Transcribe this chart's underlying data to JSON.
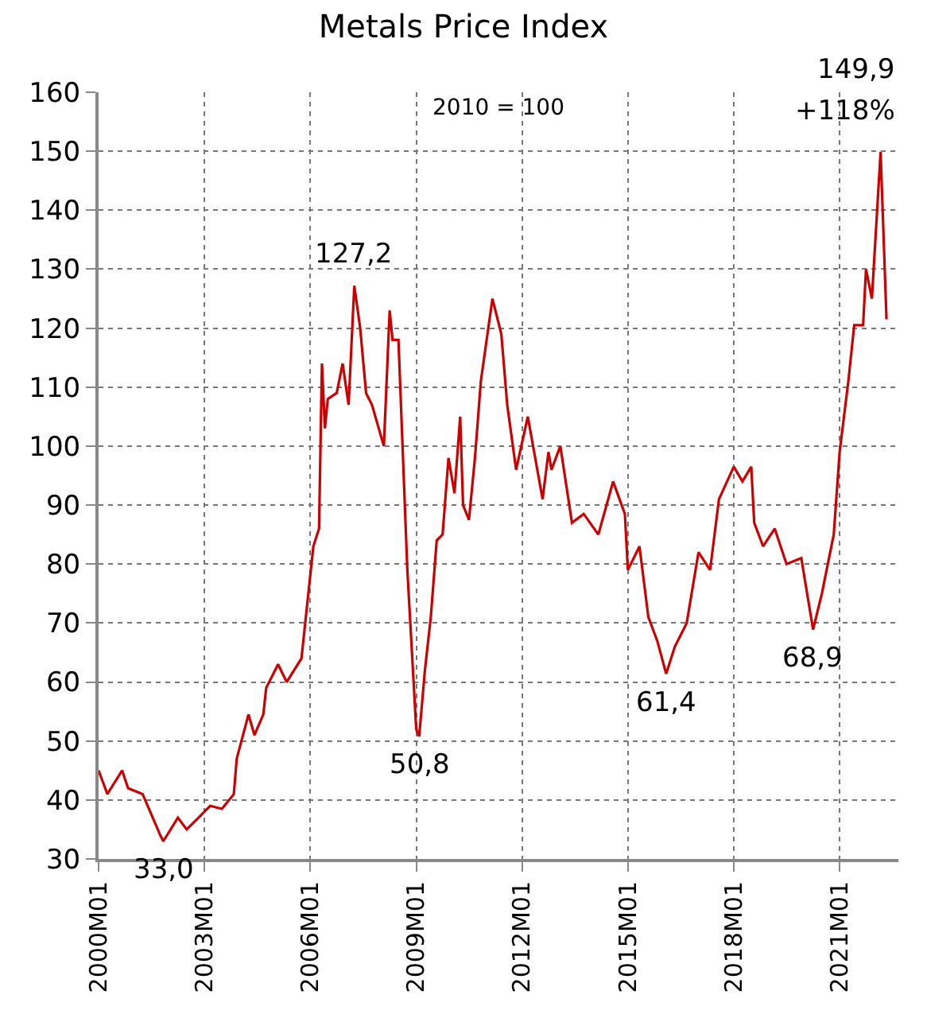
{
  "chart_data": {
    "type": "line",
    "title": "Metals Price Index",
    "subtitle": "2010 = 100",
    "x": [
      "2000-01",
      "2000-04",
      "2000-09",
      "2000-11",
      "2001-04",
      "2001-10",
      "2001-11",
      "2002-04",
      "2002-07",
      "2002-11",
      "2003-03",
      "2003-07",
      "2003-11",
      "2003-12",
      "2004-04",
      "2004-06",
      "2004-09",
      "2004-10",
      "2005-02",
      "2005-05",
      "2005-10",
      "2006-02",
      "2006-04",
      "2006-05",
      "2006-06",
      "2006-07",
      "2006-10",
      "2006-12",
      "2007-02",
      "2007-04",
      "2007-06",
      "2007-08",
      "2007-10",
      "2008-02",
      "2008-04",
      "2008-05",
      "2008-07",
      "2008-10",
      "2009-01",
      "2009-02",
      "2009-04",
      "2009-06",
      "2009-08",
      "2009-10",
      "2009-12",
      "2010-02",
      "2010-04",
      "2010-05",
      "2010-07",
      "2010-09",
      "2010-11",
      "2011-03",
      "2011-06",
      "2011-08",
      "2011-11",
      "2012-03",
      "2012-08",
      "2012-10",
      "2012-11",
      "2013-02",
      "2013-06",
      "2013-10",
      "2014-03",
      "2014-08",
      "2014-12",
      "2015-01",
      "2015-05",
      "2015-08",
      "2015-11",
      "2016-02",
      "2016-05",
      "2016-09",
      "2017-01",
      "2017-05",
      "2017-08",
      "2018-01",
      "2018-04",
      "2018-07",
      "2018-08",
      "2018-11",
      "2019-03",
      "2019-07",
      "2019-12",
      "2020-04",
      "2020-07",
      "2020-11",
      "2021-01",
      "2021-04",
      "2021-06",
      "2021-09",
      "2021-10",
      "2021-12",
      "2022-03",
      "2022-05"
    ],
    "series": [
      {
        "color": "#cc0000",
        "values": [
          45,
          41,
          45,
          42,
          41,
          34,
          33.0,
          37,
          35,
          37,
          39,
          38.5,
          41,
          47,
          54.5,
          51,
          54.5,
          59,
          63,
          60,
          64,
          83,
          86,
          114,
          103,
          108,
          109,
          114,
          107,
          127.2,
          120,
          109,
          107,
          100,
          123,
          118,
          118,
          79,
          52,
          50.8,
          62,
          71,
          84,
          85,
          98,
          92,
          105,
          90,
          87.5,
          98,
          111,
          125,
          119,
          107,
          96,
          105,
          91,
          99,
          96,
          100,
          87,
          88.5,
          85,
          94,
          88.5,
          79,
          83,
          71,
          67,
          61.4,
          66,
          70,
          82,
          79,
          91,
          96.5,
          94,
          96.5,
          87,
          83,
          86,
          80,
          81,
          68.9,
          75,
          85,
          99,
          111,
          120.5,
          120.5,
          130,
          125,
          149.9,
          121.5
        ]
      }
    ],
    "xlim": [
      "2000-01",
      "2022-09"
    ],
    "xticks": [
      {
        "value": "2000-01",
        "label": "2000M01"
      },
      {
        "value": "2003-01",
        "label": "2003M01"
      },
      {
        "value": "2006-01",
        "label": "2006M01"
      },
      {
        "value": "2009-01",
        "label": "2009M01"
      },
      {
        "value": "2012-01",
        "label": "2012M01"
      },
      {
        "value": "2015-01",
        "label": "2015M01"
      },
      {
        "value": "2018-01",
        "label": "2018M01"
      },
      {
        "value": "2021-01",
        "label": "2021M01"
      }
    ],
    "ylim": [
      30,
      160
    ],
    "yticks": [
      30,
      40,
      50,
      60,
      70,
      80,
      90,
      100,
      110,
      120,
      130,
      140,
      150,
      160
    ],
    "grid": true,
    "marker": "none",
    "line_style": "solid",
    "annotations": [
      {
        "text": "127,2",
        "x": "2007-04",
        "y": 127.2
      },
      {
        "text": "50,8",
        "x": "2009-02",
        "y": 50.8
      },
      {
        "text": "33,0",
        "x": "2001-11",
        "y": 33.0
      },
      {
        "text": "61,4",
        "x": "2016-02",
        "y": 61.4
      },
      {
        "text": "68,9",
        "x": "2020-04",
        "y": 68.9
      },
      {
        "text": "149,9",
        "x": "2022-03",
        "y": 149.9
      },
      "+118%"
    ]
  }
}
